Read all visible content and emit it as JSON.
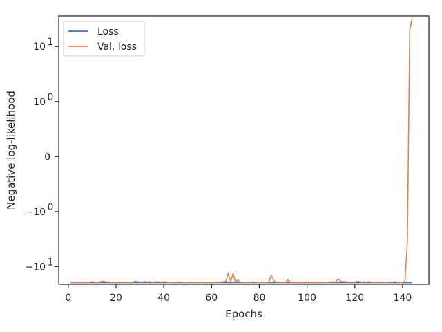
{
  "chart_data": {
    "type": "line",
    "xlabel": "Epochs",
    "ylabel": "Negative log-likelihood",
    "yscale": "symlog",
    "xlim": [
      -4,
      151
    ],
    "ylim": [
      -21,
      36
    ],
    "grid": false,
    "legend_placement": "top-left",
    "x_ticks": [
      0,
      20,
      40,
      60,
      80,
      100,
      120,
      140
    ],
    "y_ticks": [
      {
        "value": 10,
        "base": "10",
        "exp": "1"
      },
      {
        "value": 1,
        "base": "10",
        "exp": "0"
      },
      {
        "value": 0,
        "base": "0",
        "exp": ""
      },
      {
        "value": -1,
        "base": "−10",
        "exp": "0"
      },
      {
        "value": -10,
        "base": "−10",
        "exp": "1"
      }
    ],
    "series": [
      {
        "name": "Loss",
        "color": "#4c72b0",
        "x_start": 1,
        "values": [
          -19.6,
          -19.6,
          -19.6,
          -19.6,
          -19.6,
          -19.6,
          -19.6,
          -19.6,
          -19.6,
          -19.6,
          -19.6,
          -19.6,
          -19.6,
          -19.6,
          -19.6,
          -19.6,
          -19.6,
          -19.6,
          -19.6,
          -19.6,
          -19.6,
          -19.6,
          -19.6,
          -19.6,
          -19.6,
          -19.6,
          -19.6,
          -19.6,
          -19.6,
          -19.6,
          -19.6,
          -19.6,
          -19.6,
          -19.6,
          -19.6,
          -19.6,
          -19.6,
          -19.6,
          -19.6,
          -19.6,
          -19.6,
          -19.6,
          -19.6,
          -19.6,
          -19.6,
          -19.6,
          -19.6,
          -19.6,
          -19.6,
          -19.6,
          -19.6,
          -19.6,
          -19.6,
          -19.6,
          -19.6,
          -19.6,
          -19.6,
          -19.6,
          -19.6,
          -19.6,
          -19.6,
          -19.6,
          -19.6,
          -19.6,
          -19.6,
          -19.6,
          -19.6,
          -19.6,
          -19.6,
          -19.6,
          -19.6,
          -19.6,
          -19.6,
          -19.6,
          -19.6,
          -19.6,
          -19.6,
          -19.6,
          -19.6,
          -19.6,
          -19.6,
          -19.6,
          -19.6,
          -19.6,
          -19.6,
          -19.6,
          -19.6,
          -19.6,
          -19.6,
          -19.6,
          -19.6,
          -19.6,
          -19.6,
          -19.6,
          -19.6,
          -19.6,
          -19.6,
          -19.6,
          -19.6,
          -19.6,
          -19.6,
          -19.6,
          -19.6,
          -19.6,
          -19.6,
          -19.6,
          -19.6,
          -19.6,
          -19.6,
          -19.6,
          -19.6,
          -19.6,
          -19.6,
          -19.6,
          -19.6,
          -19.6,
          -19.6,
          -19.6,
          -19.6,
          -19.6,
          -19.6,
          -19.6,
          -19.6,
          -19.6,
          -19.6,
          -19.6,
          -19.6,
          -19.6,
          -19.6,
          -19.6,
          -19.6,
          -19.6,
          -19.6,
          -19.6,
          -19.6,
          -19.6,
          -19.6,
          -19.6,
          -19.6,
          -19.6,
          -19.6,
          -19.6,
          -19.6,
          -19.6
        ]
      },
      {
        "name": "Val. loss",
        "color": "#dd8452",
        "x_start": 1,
        "values": [
          -19.6,
          -19.5,
          -19.4,
          -19.3,
          -19.3,
          -19.2,
          -19.3,
          -19.4,
          -19.3,
          -18.7,
          -19.3,
          -19.4,
          -19.3,
          -18.5,
          -18.5,
          -19.0,
          -19.1,
          -19.2,
          -19.2,
          -19.3,
          -19.2,
          -19.1,
          -19.2,
          -19.3,
          -19.2,
          -19.3,
          -19.2,
          -18.5,
          -18.8,
          -19.1,
          -19.0,
          -18.6,
          -19.2,
          -18.7,
          -19.3,
          -19.1,
          -18.8,
          -19.0,
          -19.2,
          -18.9,
          -18.9,
          -19.3,
          -19.4,
          -19.3,
          -19.3,
          -19.0,
          -19.1,
          -19.3,
          -19.4,
          -19.3,
          -19.1,
          -19.3,
          -19.4,
          -19.3,
          -19.1,
          -19.3,
          -19.3,
          -19.3,
          -19.3,
          -19.3,
          -19.4,
          -19.3,
          -19.0,
          -19.2,
          -18.7,
          -18.5,
          -13.1,
          -19.0,
          -13.3,
          -19.2,
          -17.4,
          -19.2,
          -19.3,
          -19.2,
          -19.3,
          -19.3,
          -19.0,
          -19.1,
          -19.2,
          -19.4,
          -19.2,
          -19.3,
          -19.3,
          -19.1,
          -14.2,
          -18.0,
          -19.1,
          -19.2,
          -19.3,
          -19.3,
          -19.2,
          -17.5,
          -19.1,
          -19.3,
          -19.3,
          -19.2,
          -19.3,
          -19.2,
          -19.3,
          -19.3,
          -19.2,
          -19.3,
          -19.3,
          -19.3,
          -19.2,
          -19.3,
          -19.3,
          -19.3,
          -19.2,
          -18.9,
          -19.1,
          -19.0,
          -16.8,
          -18.5,
          -18.7,
          -18.7,
          -19.2,
          -19.1,
          -19.1,
          -19.2,
          -18.5,
          -18.8,
          -19.3,
          -19.0,
          -19.2,
          -18.8,
          -19.2,
          -19.3,
          -19.2,
          -19.1,
          -19.2,
          -19.2,
          -19.3,
          -19.2,
          -18.9,
          -19.2,
          -18.7,
          -19.3,
          -19.2,
          -19.3,
          -18.6,
          -3.5,
          20,
          33
        ]
      }
    ]
  }
}
